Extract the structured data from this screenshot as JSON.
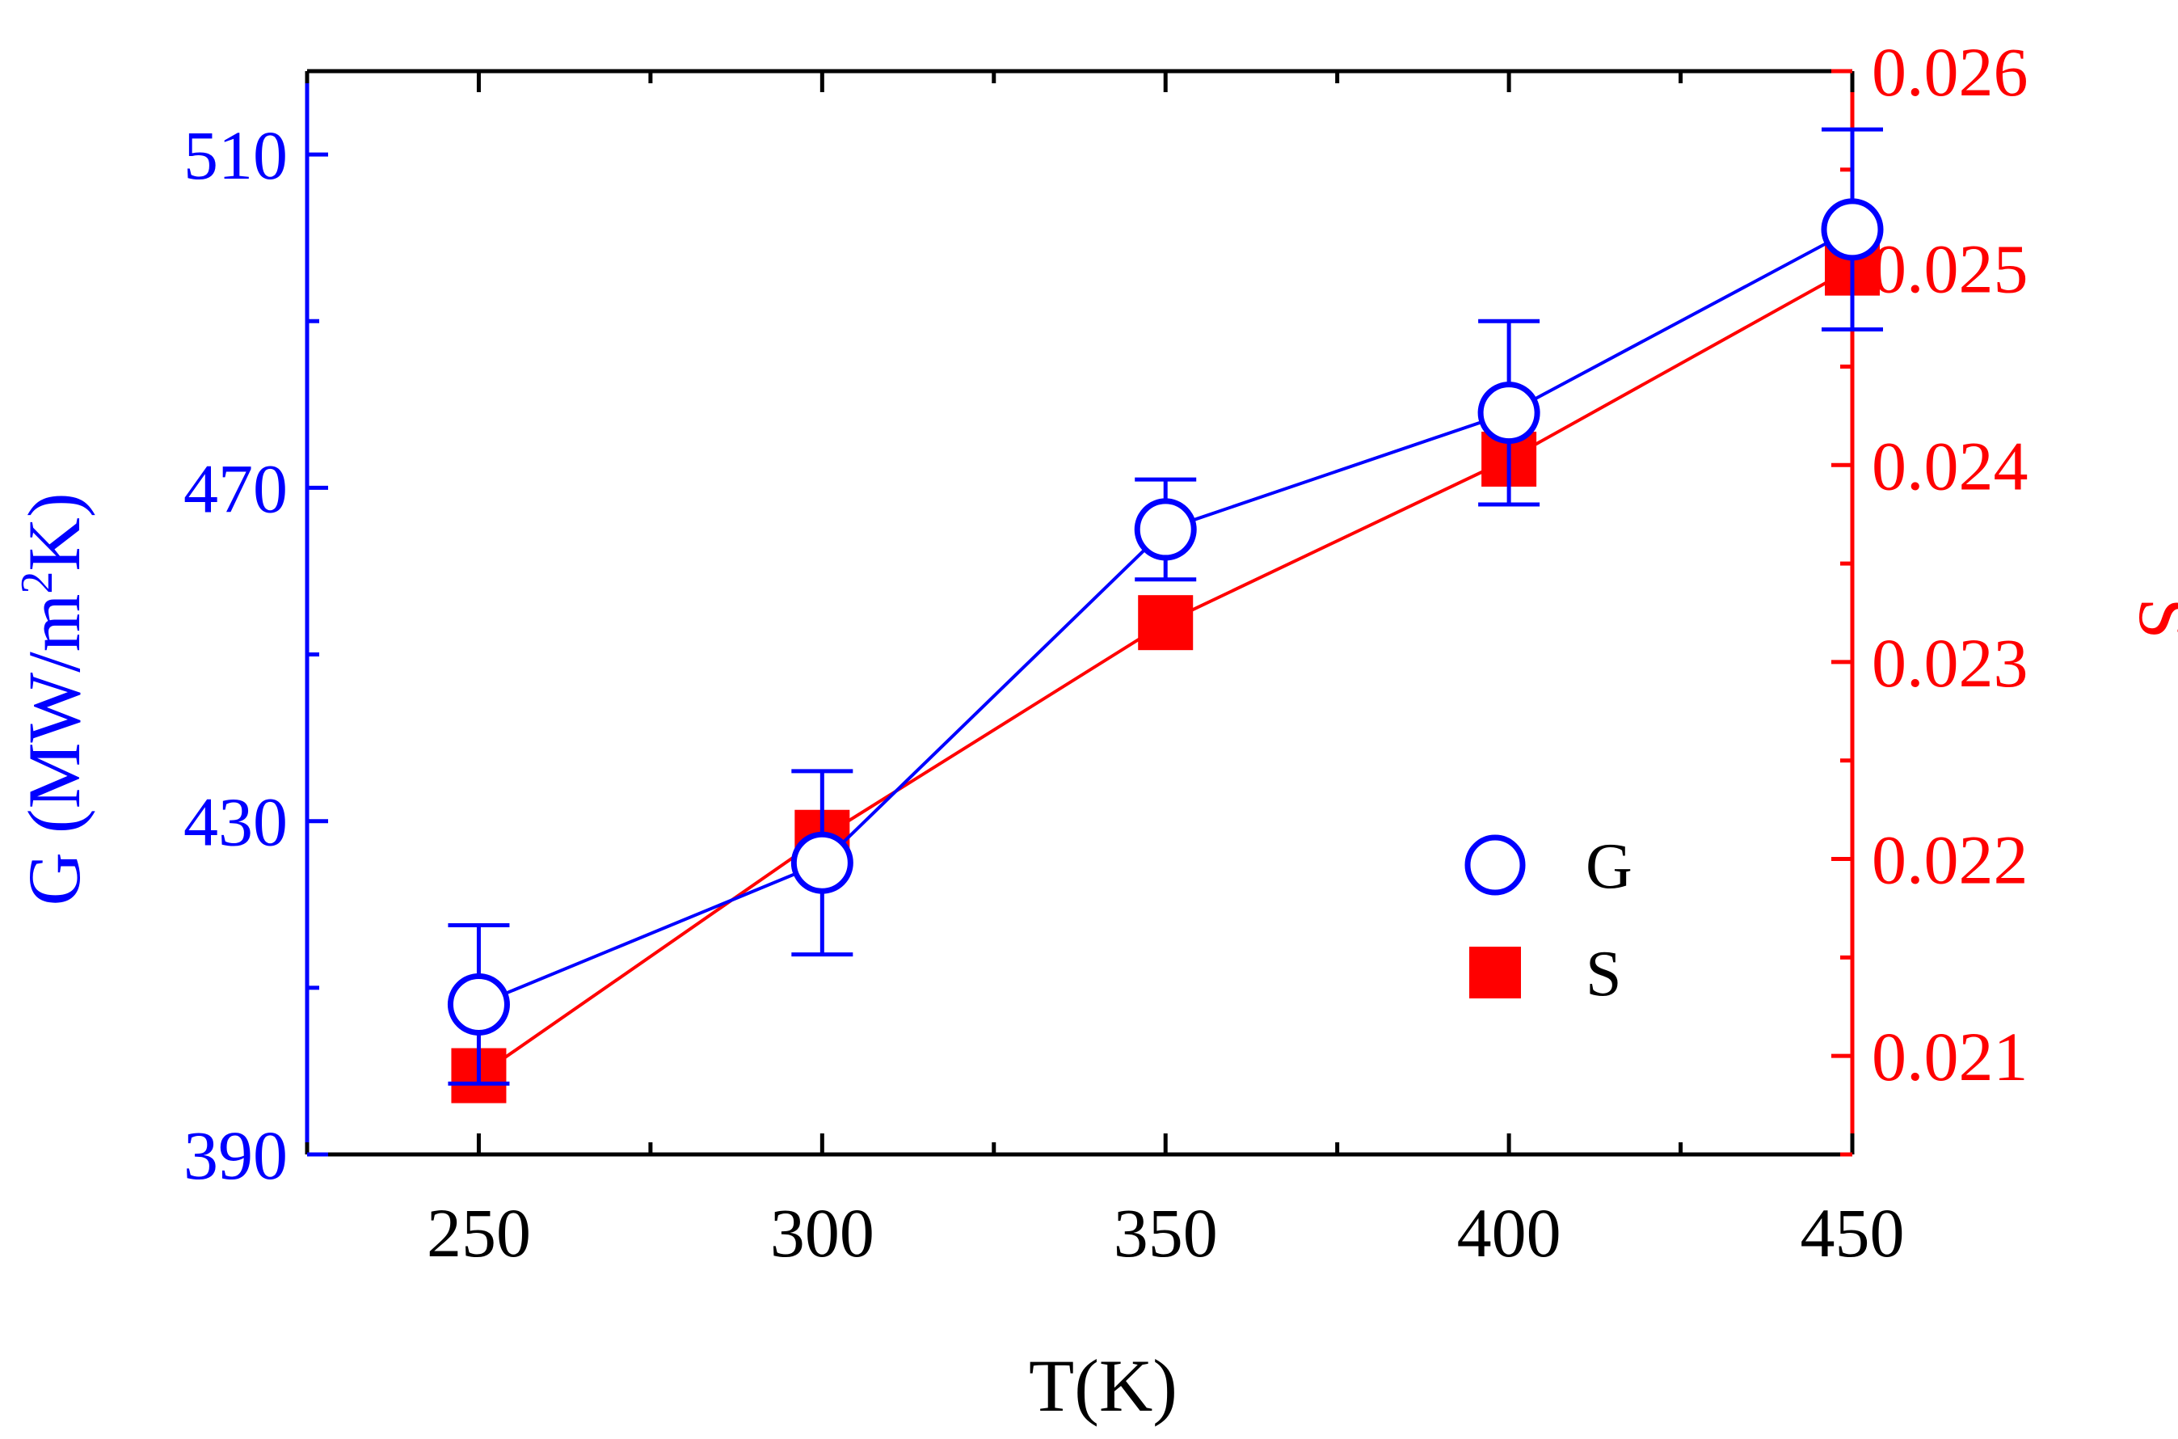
{
  "chart_data": {
    "type": "line",
    "x": [
      250,
      300,
      350,
      400,
      450
    ],
    "xlabel": "T(K)",
    "xlim": [
      225,
      450
    ],
    "xticks": [
      250,
      300,
      350,
      400,
      450
    ],
    "ylabel_left": {
      "prefix": "G (MW/m",
      "superscript": "2",
      "suffix": "K)"
    },
    "ylim_left": [
      390,
      520
    ],
    "yticks_left": [
      390,
      430,
      470,
      510
    ],
    "ylabel_right": "S",
    "ylim_right": [
      0.0205,
      0.026
    ],
    "yticks_right": [
      "0.021",
      "0.022",
      "0.023",
      "0.024",
      "0.025",
      "0.026"
    ],
    "grid": false,
    "legend_position": "center-right",
    "series": [
      {
        "name": "G",
        "axis": "left",
        "marker": "open-circle",
        "color": "#0000ff",
        "values": [
          408,
          425,
          465,
          479,
          501
        ],
        "errors": [
          9.5,
          11,
          6,
          11,
          12
        ]
      },
      {
        "name": "S",
        "axis": "right",
        "marker": "filled-square",
        "color": "#ff0000",
        "values": [
          0.0209,
          0.02211,
          0.0232,
          0.02403,
          0.025
        ]
      }
    ]
  }
}
